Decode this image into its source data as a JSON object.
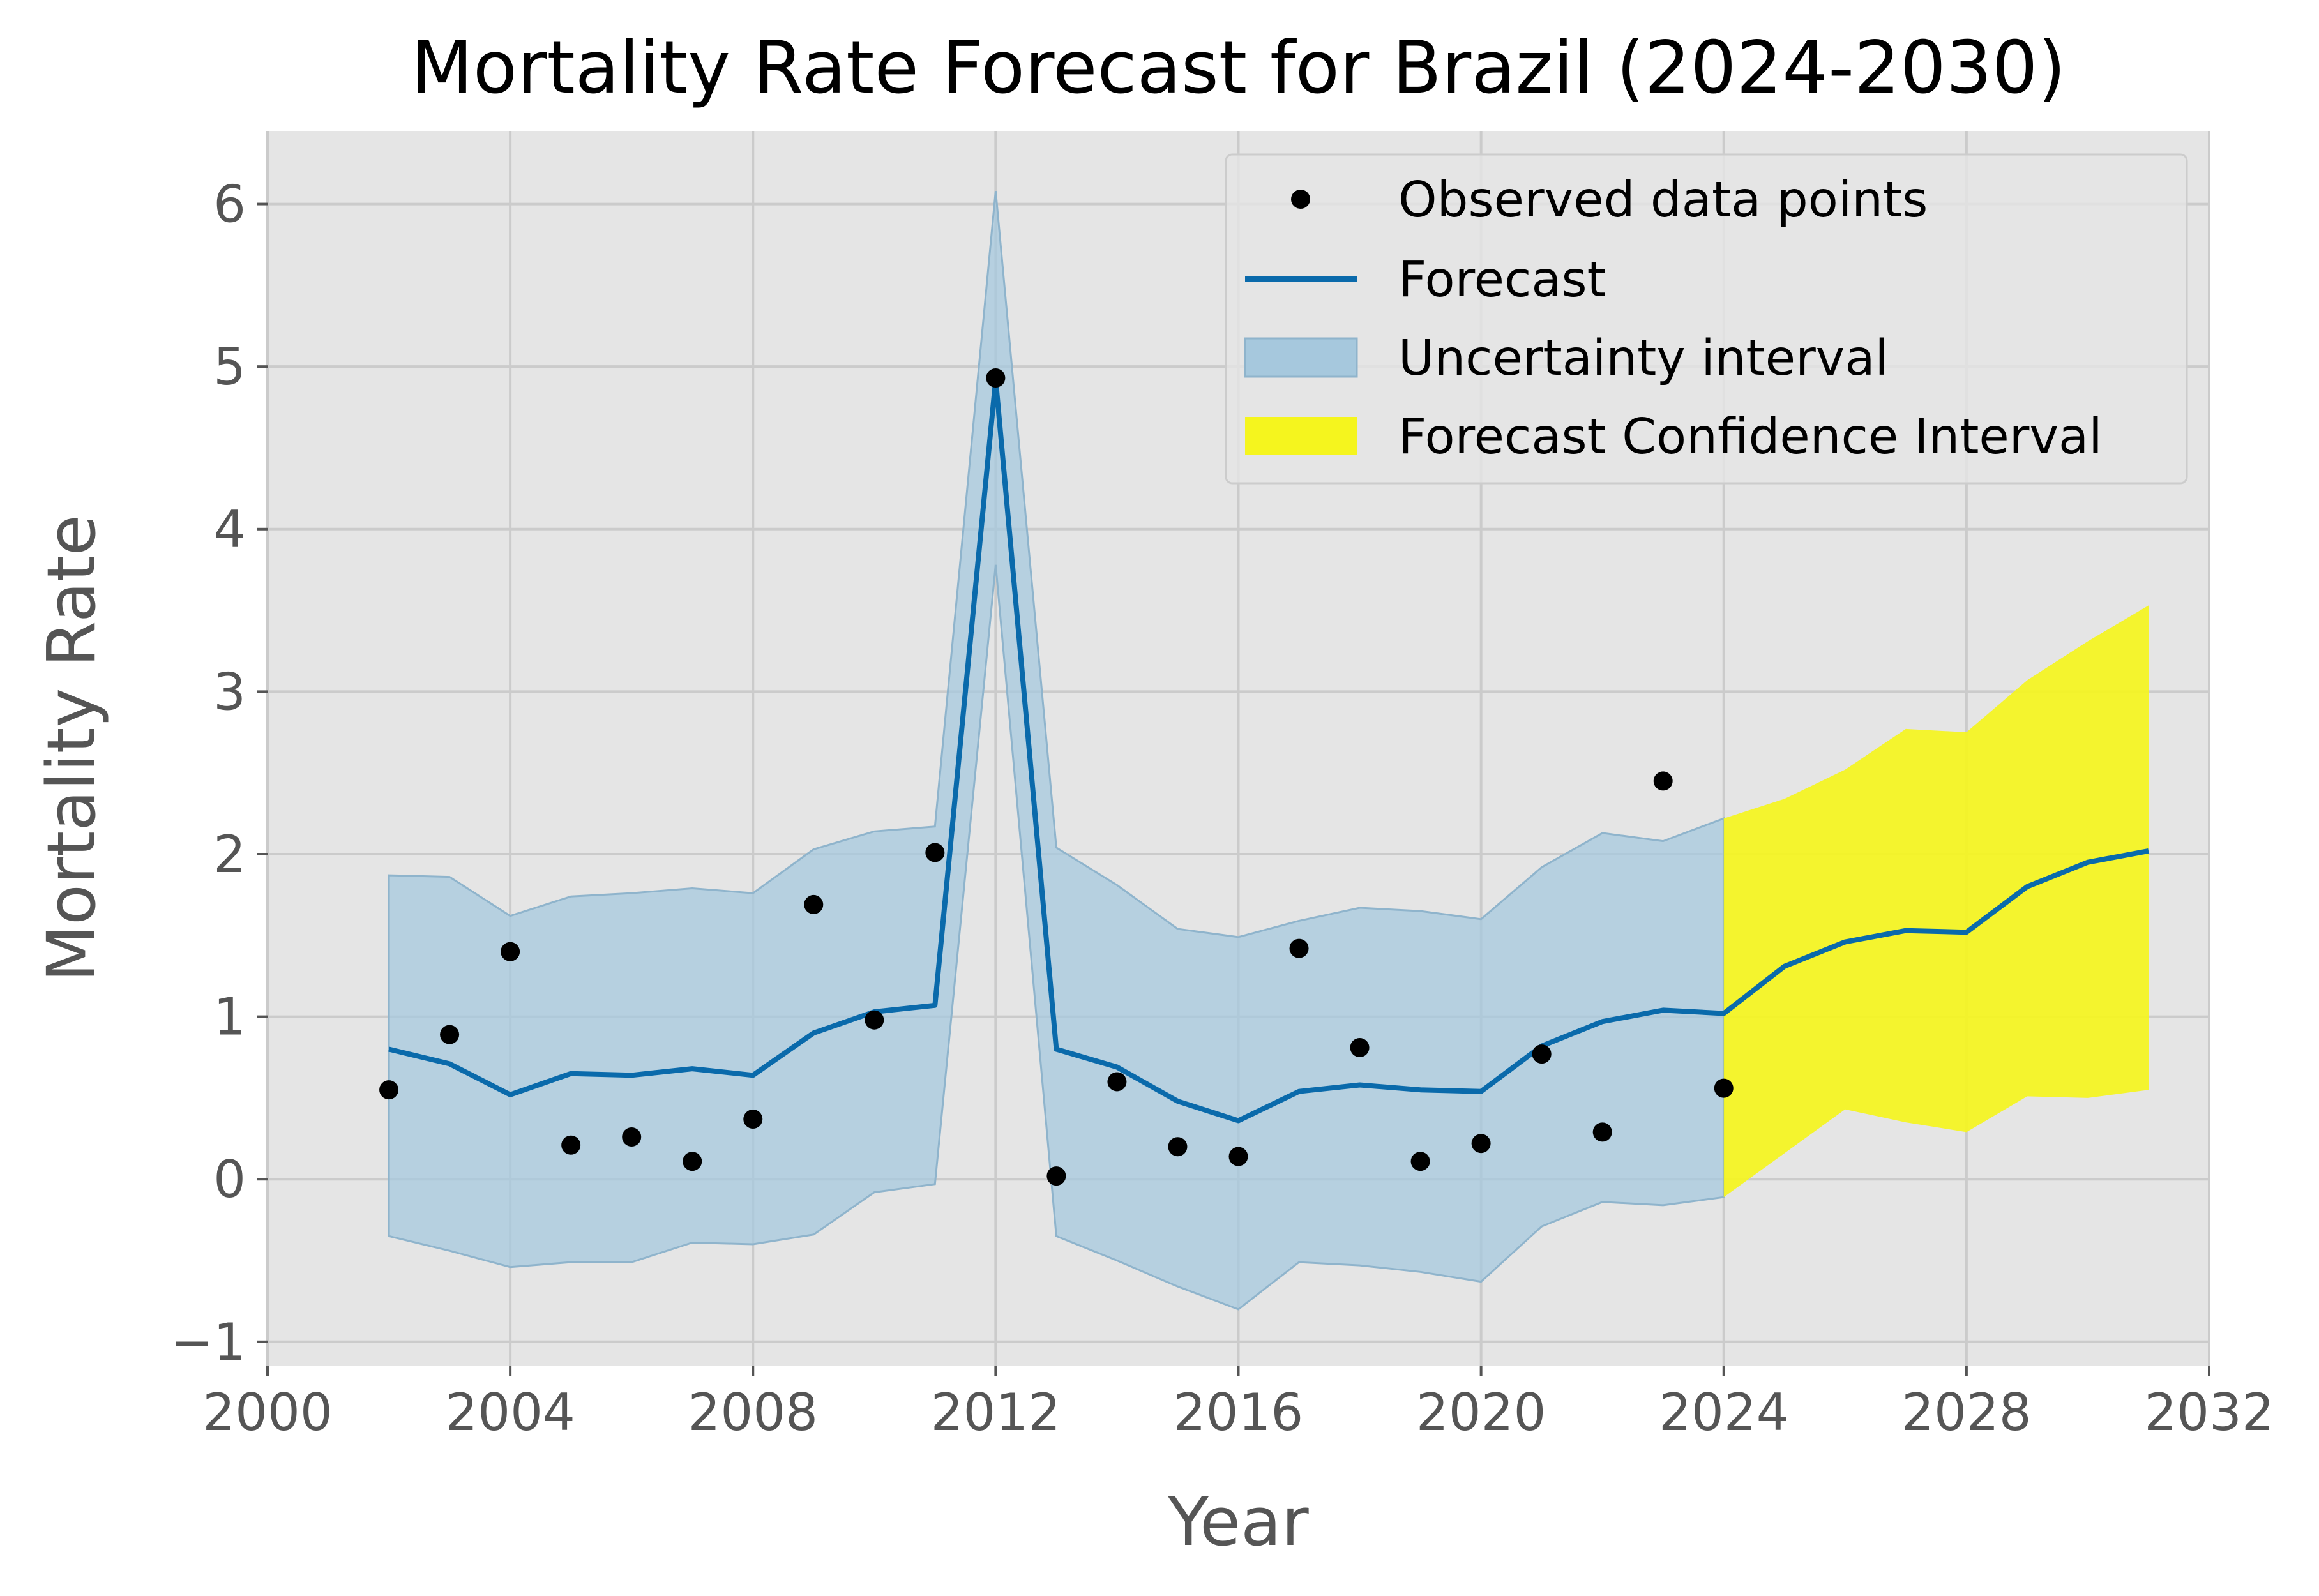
{
  "chart_data": {
    "type": "line",
    "title": "Mortality Rate Forecast for Brazil (2024-2030)",
    "xlabel": "Year",
    "ylabel": "Mortality Rate",
    "xlim": [
      2000,
      2032
    ],
    "ylim": [
      -1.15,
      6.45
    ],
    "x_ticks": [
      2000,
      2004,
      2008,
      2012,
      2016,
      2020,
      2024,
      2028,
      2032
    ],
    "y_ticks": [
      -1,
      0,
      1,
      2,
      3,
      4,
      5,
      6
    ],
    "x_tick_labels": [
      "2000",
      "2004",
      "2008",
      "2012",
      "2016",
      "2020",
      "2024",
      "2028",
      "2032"
    ],
    "y_tick_labels": [
      "−1",
      "0",
      "1",
      "2",
      "3",
      "4",
      "5",
      "6"
    ],
    "grid": true,
    "legend_position": "top-right",
    "legend": [
      "Observed data points",
      "Forecast",
      "Uncertainty interval",
      "Forecast Confidence Interval"
    ],
    "colors": {
      "plot_background": "#e5e5e5",
      "grid": "#cbcbcb",
      "forecast_line": "#0a6aab",
      "uncertainty_band": "#a6c8dd",
      "forecast_confidence_band": "#f5f51e",
      "observed_points": "#000000"
    },
    "series": [
      {
        "name": "Observed data points",
        "kind": "scatter",
        "x": [
          2002,
          2003,
          2004,
          2005,
          2006,
          2007,
          2008,
          2009,
          2010,
          2011,
          2012,
          2013,
          2014,
          2015,
          2016,
          2017,
          2018,
          2019,
          2020,
          2021,
          2022,
          2023,
          2024
        ],
        "y": [
          0.55,
          0.89,
          1.4,
          0.21,
          0.26,
          0.11,
          0.37,
          1.69,
          0.98,
          2.01,
          4.93,
          0.02,
          0.6,
          0.2,
          0.14,
          1.42,
          0.81,
          0.11,
          0.22,
          0.77,
          0.29,
          2.45,
          0.56
        ]
      },
      {
        "name": "Forecast",
        "kind": "line",
        "x": [
          2002,
          2003,
          2004,
          2005,
          2006,
          2007,
          2008,
          2009,
          2010,
          2011,
          2012,
          2013,
          2014,
          2015,
          2016,
          2017,
          2018,
          2019,
          2020,
          2021,
          2022,
          2023,
          2024,
          2025,
          2026,
          2027,
          2028,
          2029,
          2030,
          2031
        ],
        "y": [
          0.8,
          0.71,
          0.52,
          0.65,
          0.64,
          0.68,
          0.64,
          0.9,
          1.03,
          1.07,
          4.92,
          0.8,
          0.69,
          0.48,
          0.36,
          0.54,
          0.58,
          0.55,
          0.54,
          0.82,
          0.97,
          1.04,
          1.02,
          1.31,
          1.46,
          1.53,
          1.52,
          1.8,
          1.95,
          2.02
        ]
      },
      {
        "name": "Uncertainty interval",
        "kind": "band",
        "x": [
          2002,
          2003,
          2004,
          2005,
          2006,
          2007,
          2008,
          2009,
          2010,
          2011,
          2012,
          2013,
          2014,
          2015,
          2016,
          2017,
          2018,
          2019,
          2020,
          2021,
          2022,
          2023,
          2024
        ],
        "lower": [
          -0.35,
          -0.44,
          -0.54,
          -0.51,
          -0.51,
          -0.39,
          -0.4,
          -0.34,
          -0.08,
          -0.03,
          3.78,
          -0.35,
          -0.5,
          -0.66,
          -0.8,
          -0.51,
          -0.53,
          -0.57,
          -0.63,
          -0.29,
          -0.14,
          -0.16,
          -0.11
        ],
        "upper": [
          1.87,
          1.86,
          1.62,
          1.74,
          1.76,
          1.79,
          1.76,
          2.03,
          2.14,
          2.17,
          6.08,
          2.04,
          1.81,
          1.54,
          1.49,
          1.59,
          1.67,
          1.65,
          1.6,
          1.92,
          2.13,
          2.08,
          2.22
        ]
      },
      {
        "name": "Forecast Confidence Interval",
        "kind": "band",
        "x": [
          2024,
          2025,
          2026,
          2027,
          2028,
          2029,
          2030,
          2031
        ],
        "lower": [
          -0.11,
          0.16,
          0.43,
          0.35,
          0.29,
          0.51,
          0.5,
          0.55
        ],
        "upper": [
          2.22,
          2.34,
          2.52,
          2.77,
          2.75,
          3.07,
          3.31,
          3.53
        ]
      }
    ]
  }
}
